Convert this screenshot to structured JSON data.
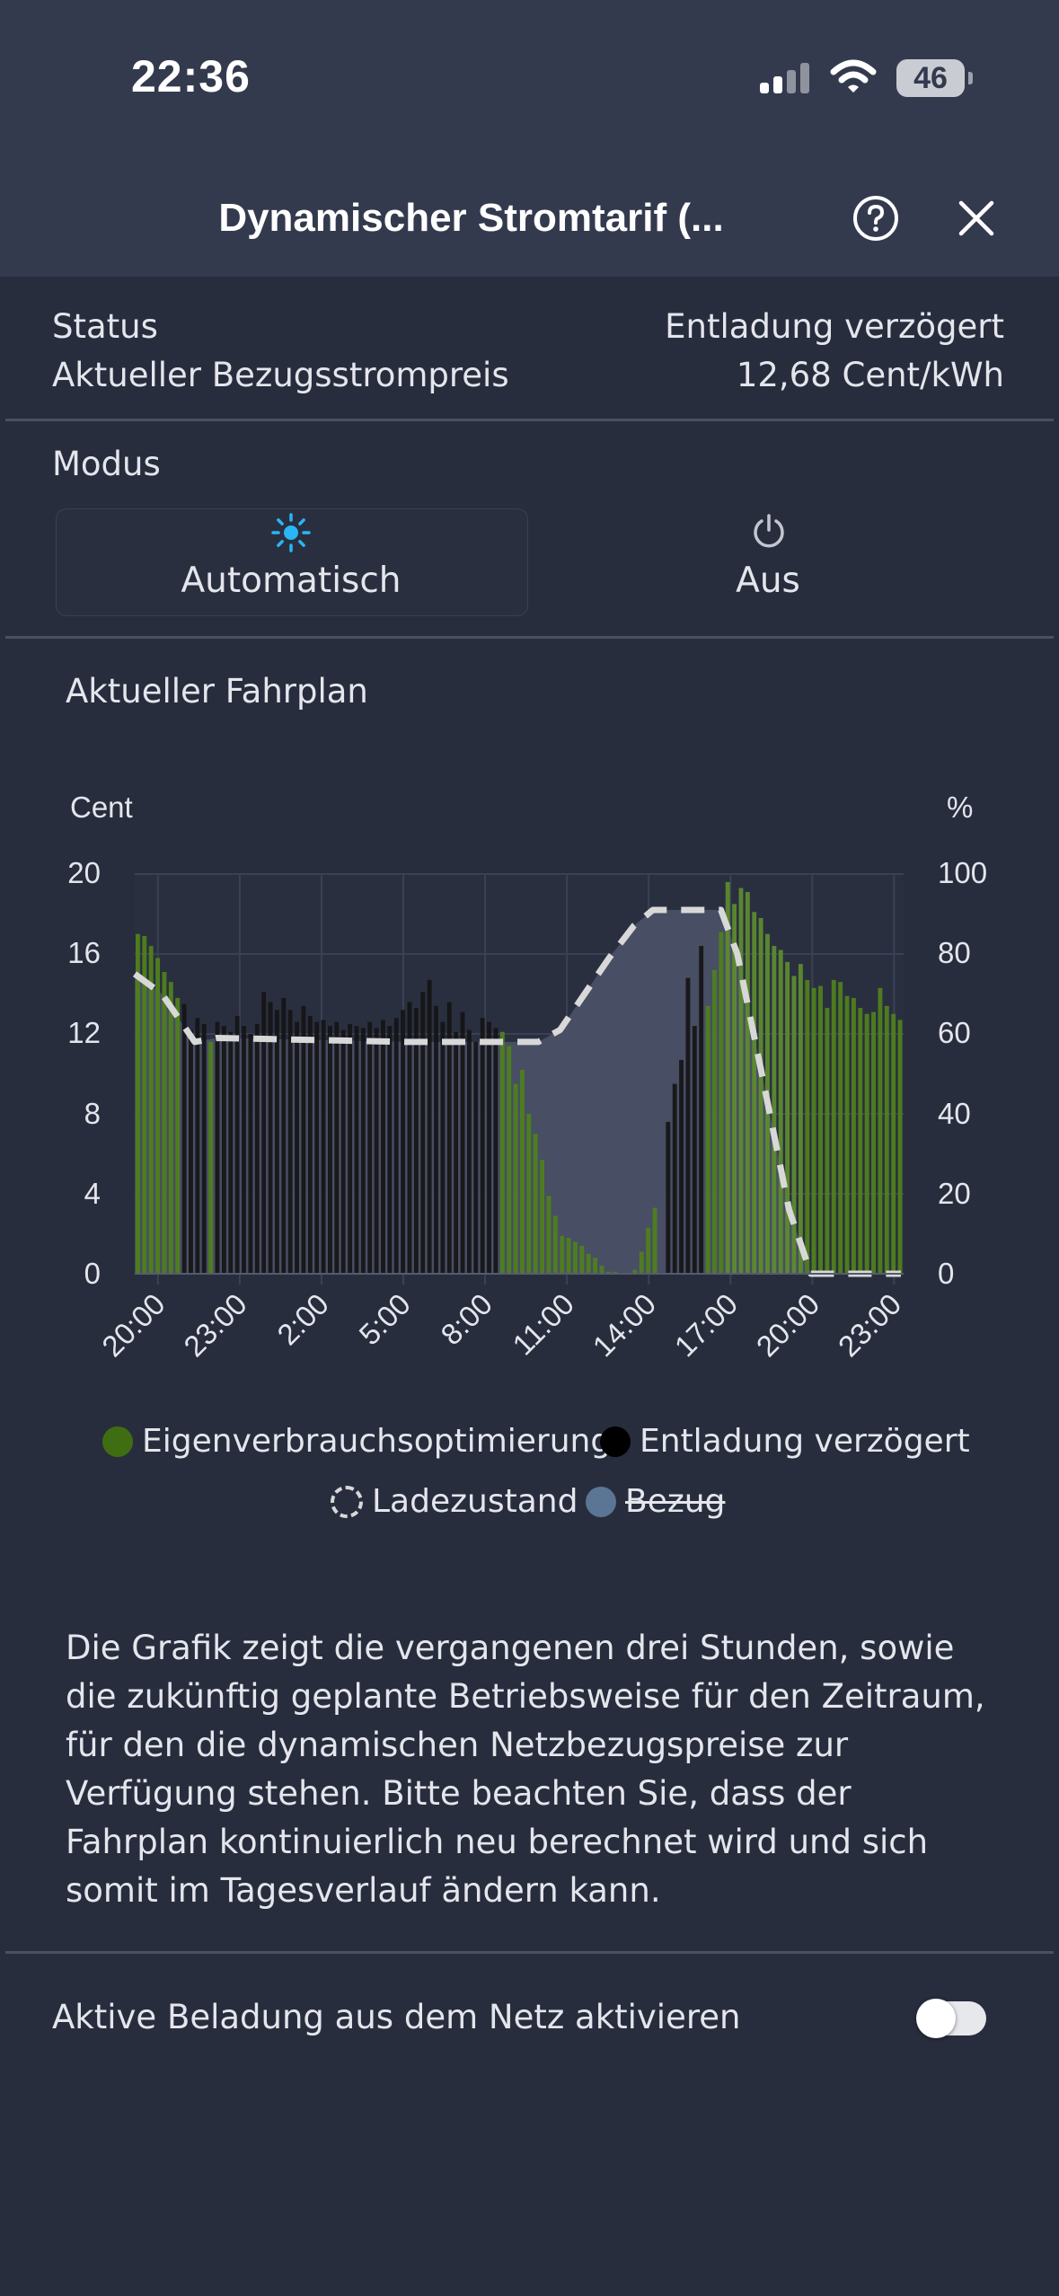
{
  "statusbar": {
    "time": "22:36",
    "battery": "46"
  },
  "header": {
    "title": "Dynamischer Stromtarif (..."
  },
  "info": {
    "status_label": "Status",
    "status_value": "Entladung verzögert",
    "price_label": "Aktueller Bezugsstrompreis",
    "price_value": "12,68 Cent/kWh"
  },
  "mode": {
    "label": "Modus",
    "selected": "Automatisch",
    "options": [
      {
        "label": "Automatisch",
        "icon": "sun-icon"
      },
      {
        "label": "Aus",
        "icon": "power-icon"
      }
    ]
  },
  "schedule": {
    "title": "Aktueller Fahrplan"
  },
  "chart_data": {
    "type": "bar",
    "y_left_label": "Cent",
    "y_right_label": "%",
    "ylim_left": [
      0,
      20
    ],
    "ylim_right": [
      0,
      100
    ],
    "y_left_ticks": [
      "20",
      "16",
      "12",
      "8",
      "4",
      "0"
    ],
    "y_right_ticks": [
      "100",
      "80",
      "60",
      "40",
      "20",
      "0"
    ],
    "x_tick_labels": [
      "20:00",
      "23:00",
      "2:00",
      "5:00",
      "8:00",
      "11:00",
      "14:00",
      "17:00",
      "20:00",
      "23:00"
    ],
    "grid": true,
    "series": [
      {
        "name": "Eigenverbrauchsoptimierung",
        "color": "#4d7a1e"
      },
      {
        "name": "Entladung verzögert",
        "color": "#111111"
      },
      {
        "name": "Ladezustand",
        "color": "#d8d8d8",
        "style": "dashed-line"
      },
      {
        "name": "Bezug",
        "color": "#5a6f8c",
        "hidden": true
      }
    ],
    "price_bars": [
      {
        "v": 17.0,
        "m": "E"
      },
      {
        "v": 16.9,
        "m": "E"
      },
      {
        "v": 16.4,
        "m": "E"
      },
      {
        "v": 15.8,
        "m": "E"
      },
      {
        "v": 15.1,
        "m": "E"
      },
      {
        "v": 14.6,
        "m": "E"
      },
      {
        "v": 13.8,
        "m": "E"
      },
      {
        "v": 13.5,
        "m": "D"
      },
      {
        "v": 12.2,
        "m": "D"
      },
      {
        "v": 12.8,
        "m": "D"
      },
      {
        "v": 12.5,
        "m": "D"
      },
      {
        "v": 11.6,
        "m": "E"
      },
      {
        "v": 12.6,
        "m": "D"
      },
      {
        "v": 12.4,
        "m": "D"
      },
      {
        "v": 12.1,
        "m": "D"
      },
      {
        "v": 12.9,
        "m": "D"
      },
      {
        "v": 12.4,
        "m": "D"
      },
      {
        "v": 12.0,
        "m": "D"
      },
      {
        "v": 12.5,
        "m": "D"
      },
      {
        "v": 14.1,
        "m": "D"
      },
      {
        "v": 13.6,
        "m": "D"
      },
      {
        "v": 13.2,
        "m": "D"
      },
      {
        "v": 13.8,
        "m": "D"
      },
      {
        "v": 13.2,
        "m": "D"
      },
      {
        "v": 12.6,
        "m": "D"
      },
      {
        "v": 13.4,
        "m": "D"
      },
      {
        "v": 12.9,
        "m": "D"
      },
      {
        "v": 12.6,
        "m": "D"
      },
      {
        "v": 12.7,
        "m": "D"
      },
      {
        "v": 12.4,
        "m": "D"
      },
      {
        "v": 12.6,
        "m": "D"
      },
      {
        "v": 12.2,
        "m": "D"
      },
      {
        "v": 12.5,
        "m": "D"
      },
      {
        "v": 12.4,
        "m": "D"
      },
      {
        "v": 12.3,
        "m": "D"
      },
      {
        "v": 12.6,
        "m": "D"
      },
      {
        "v": 12.3,
        "m": "D"
      },
      {
        "v": 12.7,
        "m": "D"
      },
      {
        "v": 12.4,
        "m": "D"
      },
      {
        "v": 12.8,
        "m": "D"
      },
      {
        "v": 13.2,
        "m": "D"
      },
      {
        "v": 13.6,
        "m": "D"
      },
      {
        "v": 13.3,
        "m": "D"
      },
      {
        "v": 14.1,
        "m": "D"
      },
      {
        "v": 14.7,
        "m": "D"
      },
      {
        "v": 13.4,
        "m": "D"
      },
      {
        "v": 12.6,
        "m": "D"
      },
      {
        "v": 13.6,
        "m": "D"
      },
      {
        "v": 12.1,
        "m": "D"
      },
      {
        "v": 13.1,
        "m": "D"
      },
      {
        "v": 12.2,
        "m": "D"
      },
      {
        "v": 11.6,
        "m": "D"
      },
      {
        "v": 12.8,
        "m": "D"
      },
      {
        "v": 12.6,
        "m": "D"
      },
      {
        "v": 12.3,
        "m": "D"
      },
      {
        "v": 12.1,
        "m": "E"
      },
      {
        "v": 11.4,
        "m": "E"
      },
      {
        "v": 9.5,
        "m": "E"
      },
      {
        "v": 10.2,
        "m": "E"
      },
      {
        "v": 8.0,
        "m": "E"
      },
      {
        "v": 7.0,
        "m": "E"
      },
      {
        "v": 5.7,
        "m": "E"
      },
      {
        "v": 3.9,
        "m": "E"
      },
      {
        "v": 2.9,
        "m": "E"
      },
      {
        "v": 1.9,
        "m": "E"
      },
      {
        "v": 1.8,
        "m": "E"
      },
      {
        "v": 1.6,
        "m": "E"
      },
      {
        "v": 1.4,
        "m": "E"
      },
      {
        "v": 1.0,
        "m": "E"
      },
      {
        "v": 0.8,
        "m": "E"
      },
      {
        "v": 0.4,
        "m": "E"
      },
      {
        "v": 0.1,
        "m": "E"
      },
      {
        "v": 0.1,
        "m": "E"
      },
      {
        "v": 0.0,
        "m": "E"
      },
      {
        "v": 0.0,
        "m": "E"
      },
      {
        "v": 0.2,
        "m": "E"
      },
      {
        "v": 1.1,
        "m": "E"
      },
      {
        "v": 2.3,
        "m": "E"
      },
      {
        "v": 3.3,
        "m": "E"
      },
      {
        "v": 0.0,
        "m": "E"
      },
      {
        "v": 7.6,
        "m": "D"
      },
      {
        "v": 9.5,
        "m": "D"
      },
      {
        "v": 10.7,
        "m": "D"
      },
      {
        "v": 14.8,
        "m": "D"
      },
      {
        "v": 12.4,
        "m": "D"
      },
      {
        "v": 16.4,
        "m": "D"
      },
      {
        "v": 13.4,
        "m": "E"
      },
      {
        "v": 15.2,
        "m": "E"
      },
      {
        "v": 17.1,
        "m": "E"
      },
      {
        "v": 19.6,
        "m": "E"
      },
      {
        "v": 18.5,
        "m": "E"
      },
      {
        "v": 19.3,
        "m": "E"
      },
      {
        "v": 19.1,
        "m": "E"
      },
      {
        "v": 18.1,
        "m": "E"
      },
      {
        "v": 17.8,
        "m": "E"
      },
      {
        "v": 17.0,
        "m": "E"
      },
      {
        "v": 16.4,
        "m": "E"
      },
      {
        "v": 16.2,
        "m": "E"
      },
      {
        "v": 15.6,
        "m": "E"
      },
      {
        "v": 14.9,
        "m": "E"
      },
      {
        "v": 15.5,
        "m": "E"
      },
      {
        "v": 14.7,
        "m": "E"
      },
      {
        "v": 14.3,
        "m": "E"
      },
      {
        "v": 14.4,
        "m": "E"
      },
      {
        "v": 13.3,
        "m": "E"
      },
      {
        "v": 14.7,
        "m": "E"
      },
      {
        "v": 14.6,
        "m": "E"
      },
      {
        "v": 13.9,
        "m": "E"
      },
      {
        "v": 13.8,
        "m": "E"
      },
      {
        "v": 13.3,
        "m": "E"
      },
      {
        "v": 13.0,
        "m": "E"
      },
      {
        "v": 13.1,
        "m": "E"
      },
      {
        "v": 14.3,
        "m": "E"
      },
      {
        "v": 13.4,
        "m": "E"
      },
      {
        "v": 13.0,
        "m": "E"
      },
      {
        "v": 12.7,
        "m": "E"
      }
    ],
    "soc_line": [
      {
        "t": 0,
        "v": 75
      },
      {
        "t": 1,
        "v": 70
      },
      {
        "t": 2.2,
        "v": 58
      },
      {
        "t": 3,
        "v": 59
      },
      {
        "t": 10,
        "v": 58
      },
      {
        "t": 14.8,
        "v": 58
      },
      {
        "t": 15.6,
        "v": 61
      },
      {
        "t": 16.5,
        "v": 70
      },
      {
        "t": 17.4,
        "v": 79
      },
      {
        "t": 18.3,
        "v": 87
      },
      {
        "t": 19.0,
        "v": 91
      },
      {
        "t": 21.5,
        "v": 91
      },
      {
        "t": 22.1,
        "v": 80
      },
      {
        "t": 23.0,
        "v": 50
      },
      {
        "t": 24.0,
        "v": 16
      },
      {
        "t": 24.8,
        "v": 0
      },
      {
        "t": 28.1,
        "v": 0
      }
    ]
  },
  "legend": [
    {
      "label": "Eigenverbrauchsoptimierung",
      "color": "#3f6e12",
      "style": "solid"
    },
    {
      "label": "Entladung verzögert",
      "color": "#000000",
      "style": "solid"
    },
    {
      "label": "Ladezustand",
      "color": "#d8d8d8",
      "style": "dashed"
    },
    {
      "label": "Bezug",
      "color": "#5b7594",
      "style": "strikethrough"
    }
  ],
  "description": "Die Grafik zeigt die vergangenen drei Stunden, sowie die zukünftig geplante Betriebsweise für den Zeitraum, für den die dynamischen Netzbezugspreise zur Verfügung stehen. Bitte beachten Sie, dass der Fahrplan kontinuierlich neu berechnet wird und sich somit im Tagesverlauf ändern kann.",
  "grid_charging": {
    "label": "Aktive Beladung aus dem Netz aktivieren",
    "enabled": false
  },
  "colors": {
    "background": "#282d3e",
    "header": "#343a4e",
    "accent": "#29b6f6"
  }
}
